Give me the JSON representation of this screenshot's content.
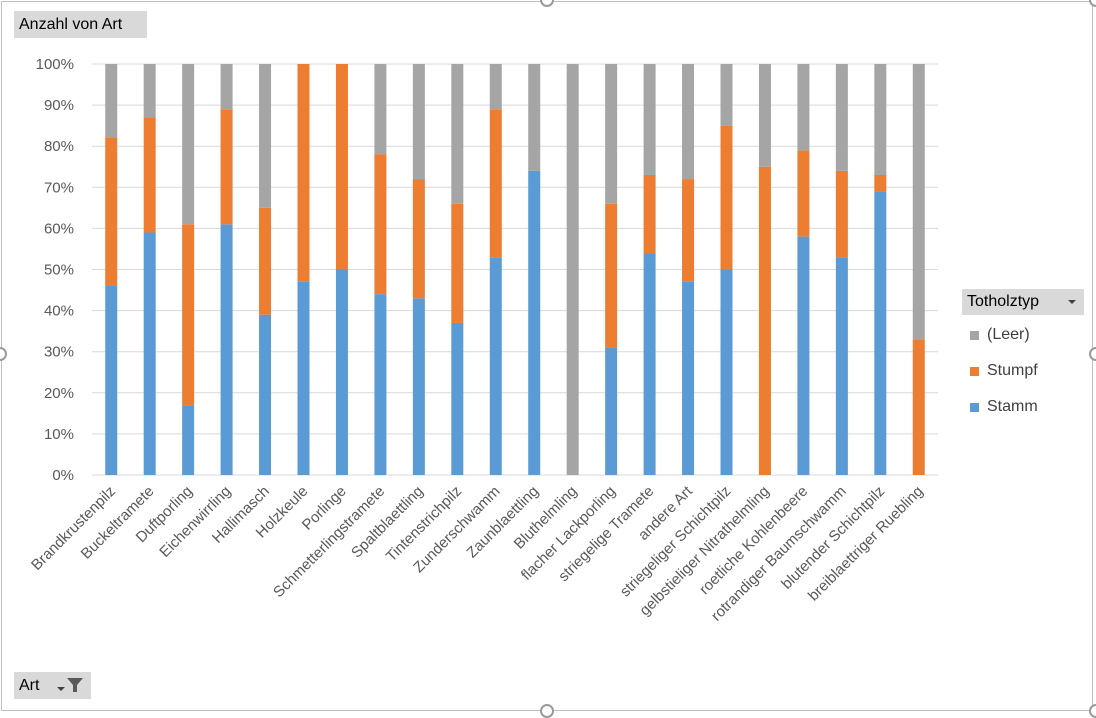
{
  "pivot": {
    "value_field": "Anzahl von Art",
    "category_field": "Art",
    "legend_field": "Totholztyp"
  },
  "icons": {
    "dropdown": "chevron-down-icon",
    "filter": "filter-icon"
  },
  "chart_data": {
    "type": "bar",
    "stacked": "percent",
    "categories": [
      "Brandkrustenpilz",
      "Buckeltramete",
      "Duftporling",
      "Eichenwirrling",
      "Hallimasch",
      "Holzkeule",
      "Porlinge",
      "Schmetterlingstramete",
      "Spaltblaettling",
      "Tintenstrichpilz",
      "Zunderschwamm",
      "Zaunblaettling",
      "Bluthelmling",
      "flacher Lackporling",
      "striegelige Tramete",
      "andere Art",
      "striegeliger Schichtpilz",
      "gelbstieliger Nitrathelmling",
      "roetliche Kohlenbeere",
      "rotrandiger Baumschwamm",
      "blutender Schichtpilz",
      "breiblaettriger Ruebling"
    ],
    "series": [
      {
        "name": "Stamm",
        "color": "#5b9bd5",
        "values": [
          46,
          59,
          17,
          61,
          39,
          47,
          50,
          44,
          43,
          37,
          53,
          74,
          0,
          31,
          54,
          47,
          50,
          0,
          58,
          53,
          69,
          0
        ]
      },
      {
        "name": "Stumpf",
        "color": "#ed7d31",
        "values": [
          36,
          28,
          44,
          28,
          26,
          53,
          50,
          34,
          29,
          29,
          36,
          0,
          0,
          35,
          19,
          25,
          35,
          75,
          21,
          21,
          4,
          33
        ]
      },
      {
        "name": "(Leer)",
        "color": "#a5a5a5",
        "values": [
          18,
          13,
          39,
          11,
          35,
          0,
          0,
          22,
          28,
          34,
          11,
          26,
          100,
          34,
          27,
          28,
          15,
          25,
          21,
          26,
          27,
          67
        ]
      }
    ],
    "y_ticks": [
      "0%",
      "10%",
      "20%",
      "30%",
      "40%",
      "50%",
      "60%",
      "70%",
      "80%",
      "90%",
      "100%"
    ],
    "ylim": [
      0,
      100
    ],
    "grid": true,
    "legend": [
      "(Leer)",
      "Stumpf",
      "Stamm"
    ],
    "legend_position": "right"
  }
}
